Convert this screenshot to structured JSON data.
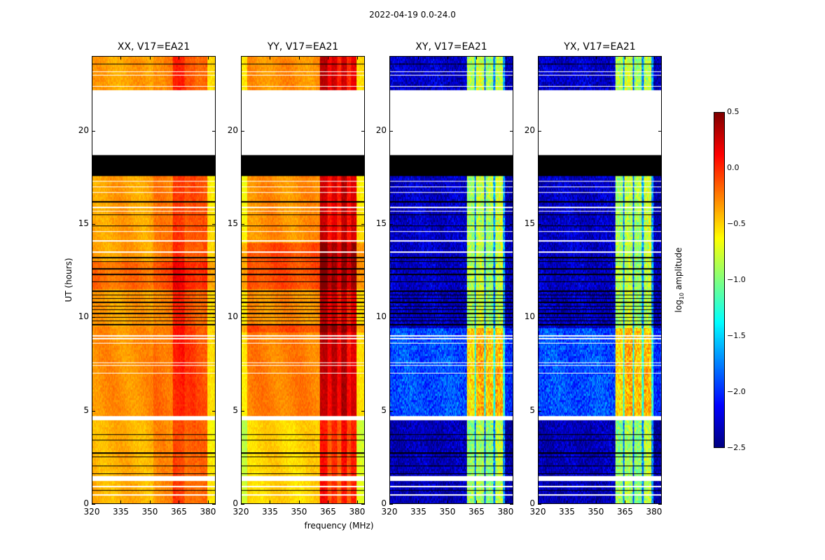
{
  "chart_data": {
    "type": "heatmap",
    "title": "2022-04-19 0.0-24.0",
    "xlabel": "frequency (MHz)",
    "ylabel": "UT (hours)",
    "xlim": [
      320,
      384
    ],
    "ylim": [
      0,
      24
    ],
    "xticks": [
      320,
      335,
      350,
      365,
      380
    ],
    "yticks": [
      0,
      5,
      10,
      15,
      20
    ],
    "colorbar": {
      "label": "log10 amplitude",
      "label_main": "log",
      "label_sub": "10",
      "label_rest": " amplitude",
      "colormap": "jet",
      "range": [
        -2.5,
        0.5
      ],
      "ticks": [
        0.5,
        0.0,
        -0.5,
        -1.0,
        -1.5,
        -2.0,
        -2.5
      ],
      "tick_labels": [
        "0.5",
        "0.0",
        "−0.5",
        "−1.0",
        "−1.5",
        "−2.0",
        "−2.5"
      ]
    },
    "blank_time_ranges": [
      [
        18.7,
        22.2
      ],
      [
        4.45,
        4.7
      ],
      [
        1.2,
        1.45
      ]
    ],
    "flagged_time_ranges": [
      [
        17.6,
        18.7
      ]
    ],
    "white_lines": [
      0.45,
      0.9,
      7.0,
      7.4,
      7.55,
      8.6,
      8.85,
      9.0,
      13.5,
      14.1,
      14.6,
      15.7,
      15.9,
      16.7,
      17.0,
      17.3,
      22.4,
      23.0,
      23.2
    ],
    "black_lines": [
      0.7,
      1.6,
      2.0,
      2.5,
      2.7,
      3.4,
      3.7,
      9.6,
      9.8,
      10.0,
      10.2,
      10.4,
      10.6,
      10.8,
      11.0,
      11.2,
      11.4,
      11.9,
      12.3,
      12.6,
      13.0,
      13.2,
      14.9,
      15.5,
      16.2,
      18.0,
      18.2,
      23.6
    ],
    "panels": [
      {
        "title": "XX, V17=EA21",
        "segments": [
          [
            320,
            352,
            -0.35
          ],
          [
            352,
            362,
            -0.25
          ],
          [
            362,
            368,
            0.0
          ],
          [
            368,
            374,
            -0.1
          ],
          [
            374,
            380,
            -0.15
          ],
          [
            380,
            384,
            -0.55
          ]
        ],
        "time_offsets": [
          [
            0,
            4.5,
            -0.05
          ],
          [
            11.5,
            13,
            0.15
          ],
          [
            4.7,
            9.5,
            0.05
          ]
        ]
      },
      {
        "title": "YY, V17=EA21",
        "segments": [
          [
            320,
            323,
            -0.6
          ],
          [
            323,
            361,
            -0.3
          ],
          [
            361,
            365,
            0.3
          ],
          [
            365,
            367,
            0.1
          ],
          [
            367,
            370,
            0.25
          ],
          [
            370,
            372,
            0.05
          ],
          [
            372,
            375,
            0.3
          ],
          [
            375,
            377,
            0.05
          ],
          [
            377,
            380,
            0.2
          ],
          [
            380,
            384,
            -0.55
          ]
        ],
        "time_offsets": [
          [
            0,
            4.5,
            -0.2
          ],
          [
            9.2,
            9.6,
            0.2
          ],
          [
            11.5,
            14,
            0.2
          ],
          [
            4.7,
            9.2,
            0.05
          ]
        ]
      },
      {
        "title": "XY, V17=EA21",
        "segments": [
          [
            320,
            360,
            -2.2
          ],
          [
            360,
            364,
            -0.8
          ],
          [
            364,
            365,
            -1.6
          ],
          [
            365,
            369,
            -0.7
          ],
          [
            369,
            370,
            -1.7
          ],
          [
            370,
            374,
            -0.8
          ],
          [
            374,
            375,
            -1.6
          ],
          [
            375,
            379,
            -0.7
          ],
          [
            379,
            380,
            -1.6
          ],
          [
            380,
            384,
            -2.3
          ]
        ],
        "time_offsets": [
          [
            0,
            4.5,
            -0.15
          ],
          [
            4.7,
            9.4,
            0.3
          ],
          [
            9.4,
            24,
            -0.1
          ]
        ]
      },
      {
        "title": "YX, V17=EA21",
        "segments": [
          [
            320,
            360,
            -2.2
          ],
          [
            360,
            364,
            -0.8
          ],
          [
            364,
            365,
            -1.6
          ],
          [
            365,
            369,
            -0.7
          ],
          [
            369,
            370,
            -1.7
          ],
          [
            370,
            374,
            -0.8
          ],
          [
            374,
            375,
            -1.6
          ],
          [
            375,
            379,
            -0.7
          ],
          [
            379,
            380,
            -1.6
          ],
          [
            380,
            384,
            -2.3
          ]
        ],
        "time_offsets": [
          [
            0,
            4.5,
            -0.15
          ],
          [
            4.7,
            9.4,
            0.3
          ],
          [
            9.4,
            24,
            -0.1
          ]
        ]
      }
    ]
  }
}
